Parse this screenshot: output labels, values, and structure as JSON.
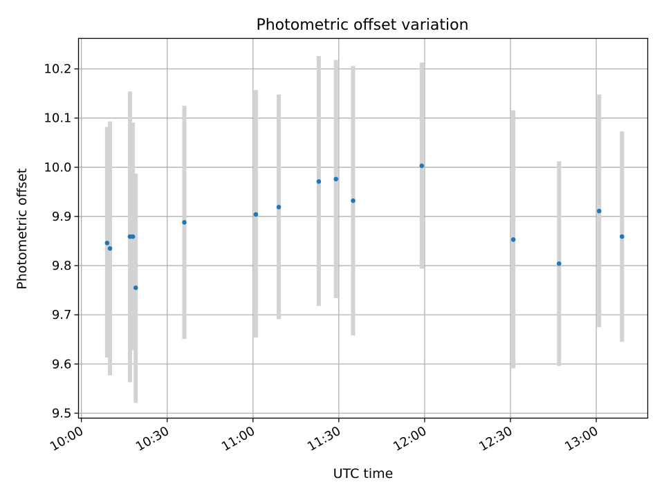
{
  "chart_data": {
    "type": "scatter",
    "title": "Photometric offset variation",
    "xlabel": "UTC time",
    "ylabel": "Photometric offset",
    "x_ticks": [
      "10:00",
      "10:30",
      "11:00",
      "11:30",
      "12:00",
      "12:30",
      "13:00"
    ],
    "y_ticks": [
      "9.5",
      "9.6",
      "9.7",
      "9.8",
      "9.9",
      "10.0",
      "10.1",
      "10.2"
    ],
    "xlim": [
      "09:59",
      "13:18"
    ],
    "ylim": [
      9.49,
      10.262
    ],
    "grid": true,
    "errorbar_color": "#d3d3d3",
    "marker_color": "#1f77b4",
    "points": [
      {
        "time": "10:09",
        "y": 9.846,
        "yerr_low": 9.613,
        "yerr_high": 10.082
      },
      {
        "time": "10:10",
        "y": 9.835,
        "yerr_low": 9.577,
        "yerr_high": 10.093
      },
      {
        "time": "10:17",
        "y": 9.859,
        "yerr_low": 9.563,
        "yerr_high": 10.154
      },
      {
        "time": "10:18",
        "y": 9.859,
        "yerr_low": 9.628,
        "yerr_high": 10.091
      },
      {
        "time": "10:19",
        "y": 9.755,
        "yerr_low": 9.521,
        "yerr_high": 9.987
      },
      {
        "time": "10:36",
        "y": 9.888,
        "yerr_low": 9.651,
        "yerr_high": 10.125
      },
      {
        "time": "11:01",
        "y": 9.904,
        "yerr_low": 9.654,
        "yerr_high": 10.157
      },
      {
        "time": "11:09",
        "y": 9.919,
        "yerr_low": 9.691,
        "yerr_high": 10.148
      },
      {
        "time": "11:23",
        "y": 9.971,
        "yerr_low": 9.718,
        "yerr_high": 10.226
      },
      {
        "time": "11:29",
        "y": 9.976,
        "yerr_low": 9.734,
        "yerr_high": 10.218
      },
      {
        "time": "11:35",
        "y": 9.932,
        "yerr_low": 9.658,
        "yerr_high": 10.206
      },
      {
        "time": "11:59",
        "y": 10.003,
        "yerr_low": 9.794,
        "yerr_high": 10.213
      },
      {
        "time": "12:31",
        "y": 9.853,
        "yerr_low": 9.591,
        "yerr_high": 10.116
      },
      {
        "time": "12:47",
        "y": 9.804,
        "yerr_low": 9.596,
        "yerr_high": 10.012
      },
      {
        "time": "13:01",
        "y": 9.911,
        "yerr_low": 9.675,
        "yerr_high": 10.148
      },
      {
        "time": "13:09",
        "y": 9.859,
        "yerr_low": 9.645,
        "yerr_high": 10.073
      }
    ]
  }
}
